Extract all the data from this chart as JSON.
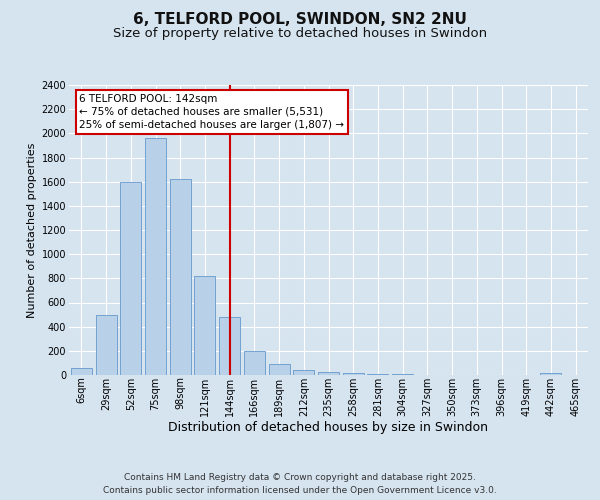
{
  "title": "6, TELFORD POOL, SWINDON, SN2 2NU",
  "subtitle": "Size of property relative to detached houses in Swindon",
  "xlabel": "Distribution of detached houses by size in Swindon",
  "ylabel": "Number of detached properties",
  "categories": [
    "6sqm",
    "29sqm",
    "52sqm",
    "75sqm",
    "98sqm",
    "121sqm",
    "144sqm",
    "166sqm",
    "189sqm",
    "212sqm",
    "235sqm",
    "258sqm",
    "281sqm",
    "304sqm",
    "327sqm",
    "350sqm",
    "373sqm",
    "396sqm",
    "419sqm",
    "442sqm",
    "465sqm"
  ],
  "values": [
    60,
    500,
    1600,
    1960,
    1620,
    820,
    480,
    200,
    90,
    40,
    25,
    20,
    10,
    5,
    3,
    2,
    1,
    0,
    0,
    20,
    0
  ],
  "bar_color": "#b8d0e8",
  "bar_edge_color": "#6699cc",
  "vline_index": 6,
  "vline_color": "#cc0000",
  "annotation_text": "6 TELFORD POOL: 142sqm\n← 75% of detached houses are smaller (5,531)\n25% of semi-detached houses are larger (1,807) →",
  "annotation_box_color": "#ffffff",
  "annotation_box_edge": "#cc0000",
  "ylim": [
    0,
    2400
  ],
  "yticks": [
    0,
    200,
    400,
    600,
    800,
    1000,
    1200,
    1400,
    1600,
    1800,
    2000,
    2200,
    2400
  ],
  "background_color": "#d6e4f0",
  "plot_bg_color": "#d6e4f0",
  "grid_color": "#ffffff",
  "footer": "Contains HM Land Registry data © Crown copyright and database right 2025.\nContains public sector information licensed under the Open Government Licence v3.0.",
  "title_fontsize": 11,
  "subtitle_fontsize": 9.5,
  "xlabel_fontsize": 9,
  "ylabel_fontsize": 8,
  "tick_fontsize": 7,
  "footer_fontsize": 6.5,
  "ann_fontsize": 7.5
}
